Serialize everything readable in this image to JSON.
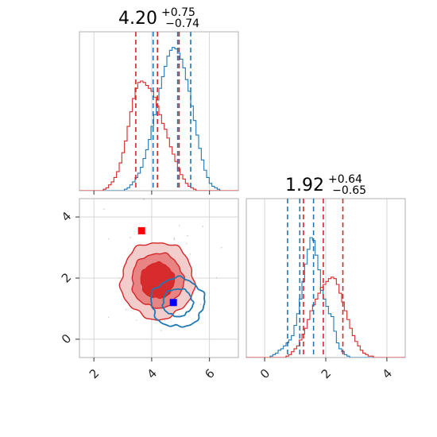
{
  "chart_data": {
    "type": "corner",
    "params": [
      {
        "id": "p1",
        "title": {
          "value": "4.20",
          "upper": "+0.75",
          "lower": "−0.74"
        },
        "xlim": [
          1.5,
          7.0
        ],
        "xticks": [
          2,
          4,
          6
        ],
        "xtick_labels": [
          "2",
          "4",
          "6"
        ],
        "blue_quantiles": [
          4.05,
          4.9,
          5.35
        ],
        "red_quantiles": [
          3.45,
          4.2,
          4.95
        ]
      },
      {
        "id": "p2",
        "title": {
          "value": "1.92",
          "upper": "+0.64",
          "lower": "−0.65"
        },
        "xlim": [
          -0.6,
          4.6
        ],
        "ylim": [
          -0.6,
          4.6
        ],
        "xticks": [
          0,
          2,
          4
        ],
        "xtick_labels": [
          "0",
          "2",
          "4"
        ],
        "yticks": [
          0,
          2,
          4
        ],
        "ytick_labels": [
          "0",
          "2",
          "4"
        ],
        "blue_quantiles": [
          0.75,
          1.15,
          1.6
        ],
        "red_quantiles": [
          1.27,
          1.92,
          2.56
        ]
      }
    ],
    "markers": [
      {
        "name": "red",
        "x": 3.65,
        "y": 3.55,
        "color": "#ff0000"
      },
      {
        "name": "blue",
        "x": 4.75,
        "y": 1.2,
        "color": "#0000ff"
      }
    ],
    "series": [
      {
        "name": "blue",
        "color": "#1f77b4",
        "hist1": [
          0,
          0,
          0,
          0,
          0,
          0,
          0,
          0,
          0,
          0,
          0,
          0,
          0,
          0,
          0,
          0,
          0,
          1,
          2,
          4,
          6,
          9,
          12,
          16,
          22,
          28,
          35,
          44,
          52,
          62,
          70,
          78,
          85,
          92,
          96,
          98,
          97,
          94,
          90,
          84,
          76,
          68,
          58,
          48,
          38,
          29,
          21,
          14,
          9,
          5,
          3,
          2,
          1,
          0,
          0,
          0,
          0,
          0,
          0,
          0
        ],
        "hist2": [
          0,
          0,
          0,
          0,
          0,
          0,
          0,
          0,
          0,
          1,
          2,
          3,
          5,
          6,
          8,
          10,
          12,
          15,
          22,
          30,
          40,
          52,
          64,
          74,
          82,
          80,
          70,
          60,
          46,
          40,
          35,
          30,
          28,
          18,
          10,
          6,
          4,
          2,
          1,
          0,
          0,
          0,
          0,
          0,
          0,
          0,
          0,
          0,
          0,
          0,
          0,
          0,
          0,
          0,
          0,
          0,
          0,
          0,
          0,
          0
        ]
      },
      {
        "name": "red",
        "color": "#d62728",
        "hist1": [
          0,
          0,
          0,
          0,
          0,
          0,
          0,
          0,
          0,
          1,
          2,
          4,
          6,
          9,
          13,
          19,
          26,
          34,
          44,
          54,
          63,
          70,
          74,
          75,
          74,
          72,
          70,
          68,
          64,
          58,
          52,
          46,
          42,
          36,
          30,
          25,
          20,
          15,
          11,
          8,
          5,
          3,
          2,
          1,
          0,
          0,
          0,
          0,
          0,
          0,
          0,
          0,
          0,
          0,
          0,
          0,
          0,
          0,
          0,
          0
        ],
        "hist2": [
          0,
          0,
          0,
          0,
          0,
          0,
          0,
          0,
          0,
          0,
          0,
          0,
          0,
          0,
          0,
          1,
          2,
          4,
          6,
          8,
          12,
          16,
          20,
          26,
          32,
          36,
          40,
          44,
          48,
          50,
          52,
          54,
          55,
          54,
          50,
          44,
          38,
          32,
          26,
          20,
          15,
          11,
          8,
          5,
          3,
          2,
          1,
          1,
          0,
          0,
          0,
          0,
          0,
          0,
          0,
          0,
          0,
          0,
          0,
          0
        ]
      }
    ],
    "contours_2d": {
      "red_center": [
        4.2,
        1.92
      ],
      "red_levels_sigma": [
        0.55,
        0.85,
        1.2
      ],
      "blue_center": [
        4.9,
        1.2
      ],
      "blue_levels_sigma": [
        0.45,
        0.8
      ]
    }
  }
}
